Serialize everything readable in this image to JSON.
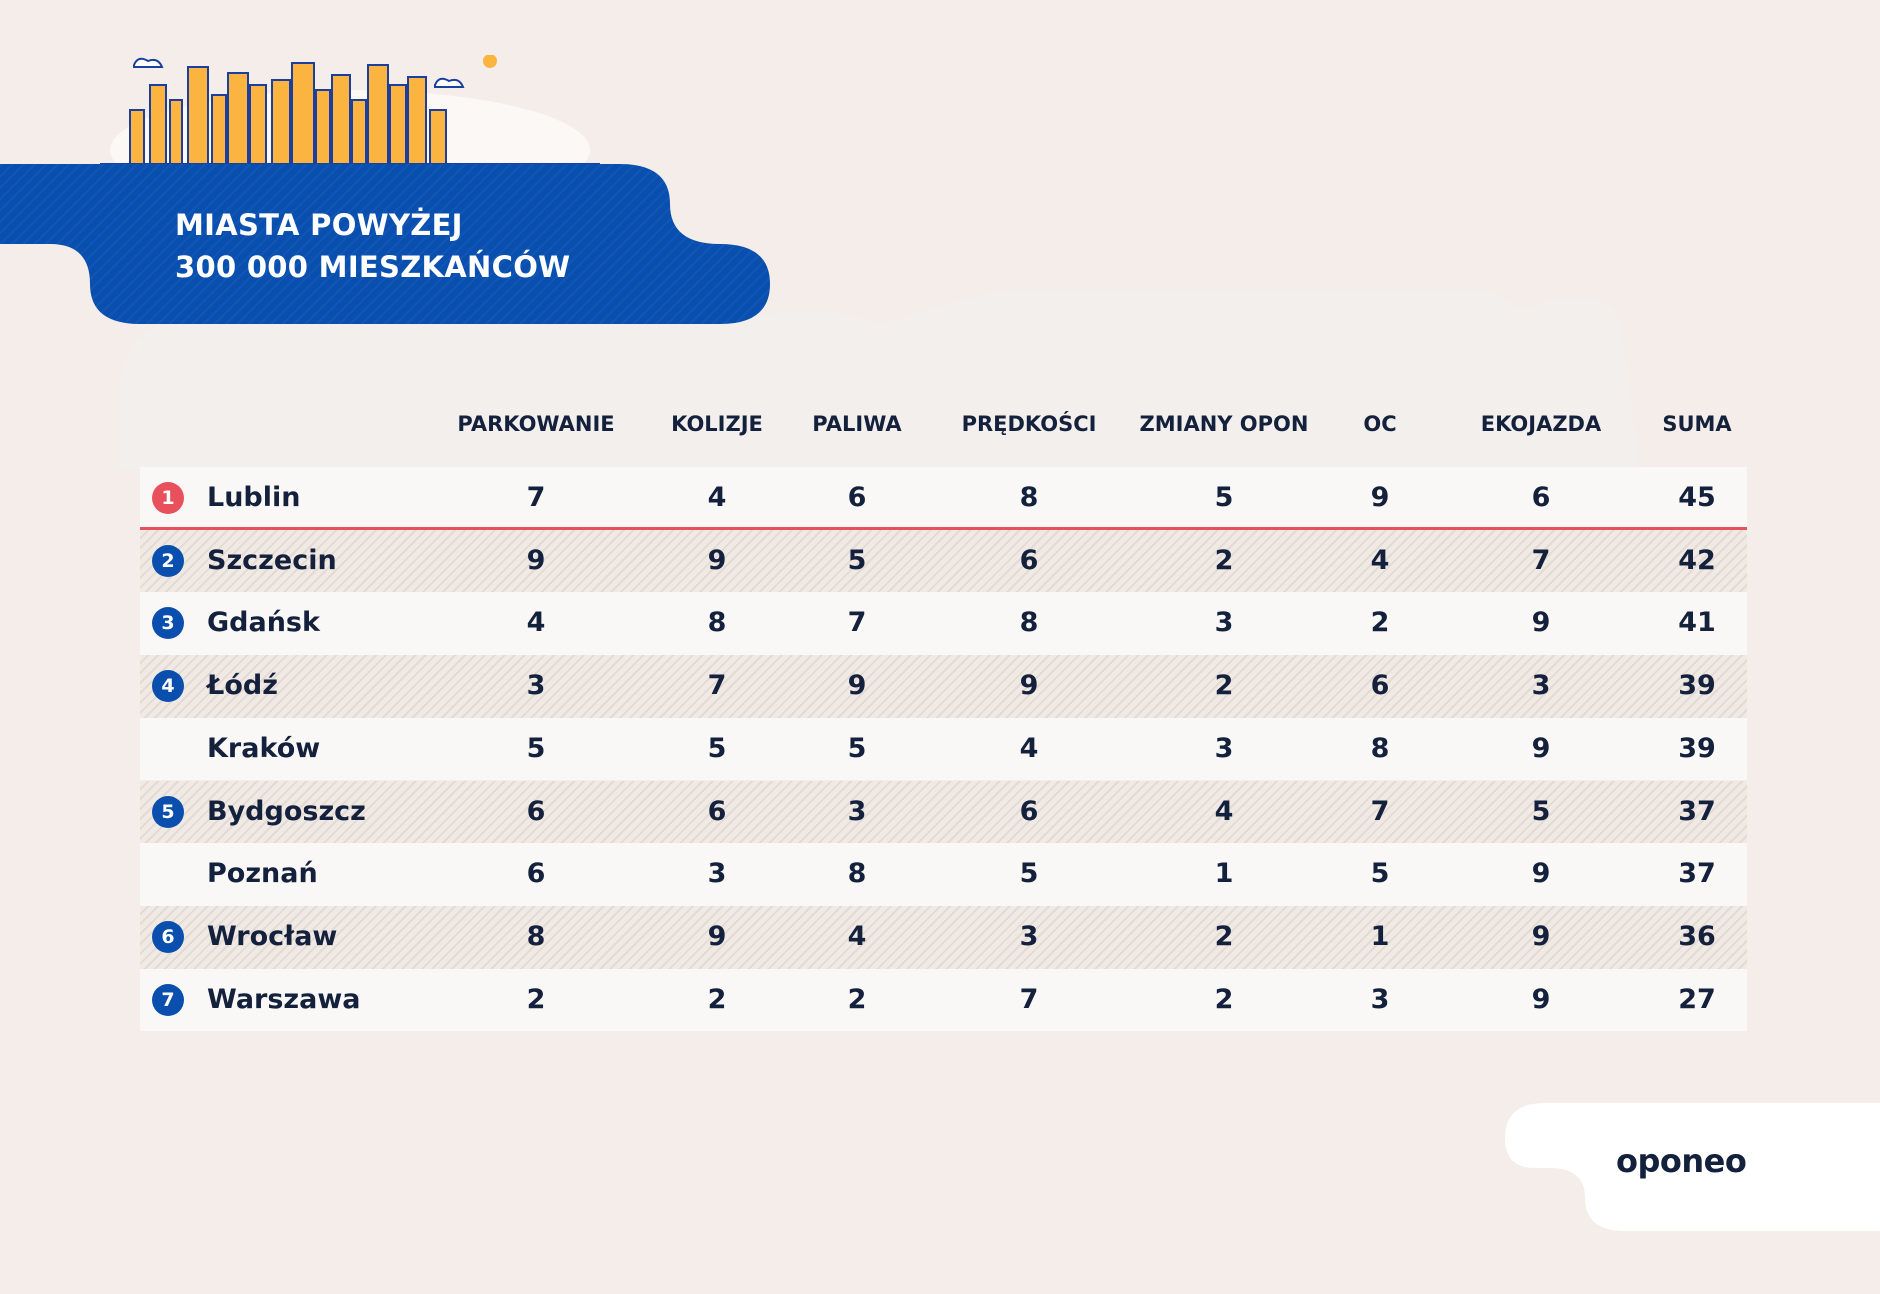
{
  "title_line1": "MIASTA POWYŻEJ",
  "title_line2": "300 000 MIESZKAŃCÓW",
  "brand": "oponeo",
  "colors": {
    "background": "#f5ede9",
    "banner": "#0b4fae",
    "text": "#14213d",
    "first_place": "#e8505b",
    "skyline": "#fbb440"
  },
  "columns": [
    "PARKOWANIE",
    "KOLIZJE",
    "PALIWA",
    "PRĘDKOŚCI",
    "ZMIANY OPON",
    "OC",
    "EKOJAZDA",
    "SUMA"
  ],
  "rows": [
    {
      "rank": "1",
      "city": "Lublin",
      "values": [
        "7",
        "4",
        "6",
        "8",
        "5",
        "9",
        "6",
        "45"
      ]
    },
    {
      "rank": "2",
      "city": "Szczecin",
      "values": [
        "9",
        "9",
        "5",
        "6",
        "2",
        "4",
        "7",
        "42"
      ]
    },
    {
      "rank": "3",
      "city": "Gdańsk",
      "values": [
        "4",
        "8",
        "7",
        "8",
        "3",
        "2",
        "9",
        "41"
      ]
    },
    {
      "rank": "4",
      "city": "Łódź",
      "values": [
        "3",
        "7",
        "9",
        "9",
        "2",
        "6",
        "3",
        "39"
      ]
    },
    {
      "rank": "",
      "city": "Kraków",
      "values": [
        "5",
        "5",
        "5",
        "4",
        "3",
        "8",
        "9",
        "39"
      ]
    },
    {
      "rank": "5",
      "city": "Bydgoszcz",
      "values": [
        "6",
        "6",
        "3",
        "6",
        "4",
        "7",
        "5",
        "37"
      ]
    },
    {
      "rank": "",
      "city": "Poznań",
      "values": [
        "6",
        "3",
        "8",
        "5",
        "1",
        "5",
        "9",
        "37"
      ]
    },
    {
      "rank": "6",
      "city": "Wrocław",
      "values": [
        "8",
        "9",
        "4",
        "3",
        "2",
        "1",
        "9",
        "36"
      ]
    },
    {
      "rank": "7",
      "city": "Warszawa",
      "values": [
        "2",
        "2",
        "2",
        "7",
        "2",
        "3",
        "9",
        "27"
      ]
    }
  ]
}
